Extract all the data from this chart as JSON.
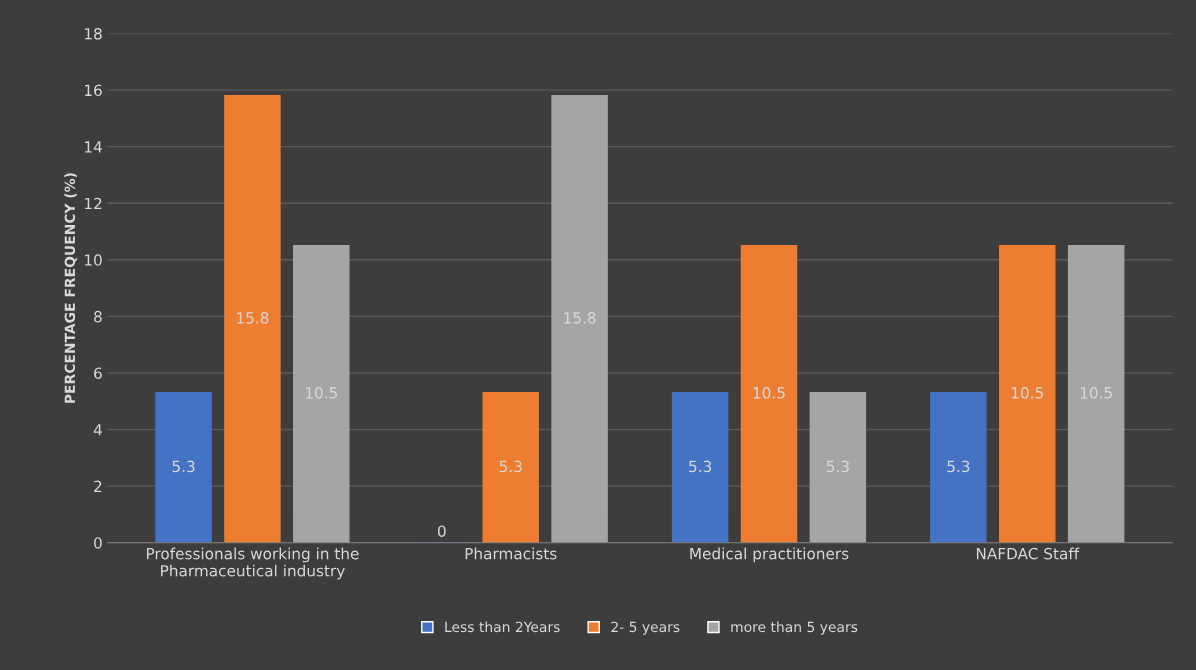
{
  "chart_data": {
    "type": "bar",
    "categories": [
      "Professionals working in the\nPharmaceutical industry",
      "Pharmacists",
      "Medical practitioners",
      "NAFDAC Staff"
    ],
    "series": [
      {
        "name": "Less than 2Years",
        "color": "#4472c4",
        "values": [
          5.3,
          0,
          5.3,
          5.3
        ]
      },
      {
        "name": "2- 5 years",
        "color": "#ed7d31",
        "values": [
          15.8,
          5.3,
          10.5,
          10.5
        ]
      },
      {
        "name": "more than 5 years",
        "color": "#a5a5a5",
        "values": [
          10.5,
          15.8,
          5.3,
          10.5
        ]
      }
    ],
    "ylabel": "PERCENTAGE FREQUENCY (%)",
    "ylim": [
      0,
      18
    ],
    "yticks": [
      0,
      2,
      4,
      6,
      8,
      10,
      12,
      14,
      16,
      18
    ],
    "grid": "y",
    "legend": "bottom",
    "data_labels": true
  }
}
